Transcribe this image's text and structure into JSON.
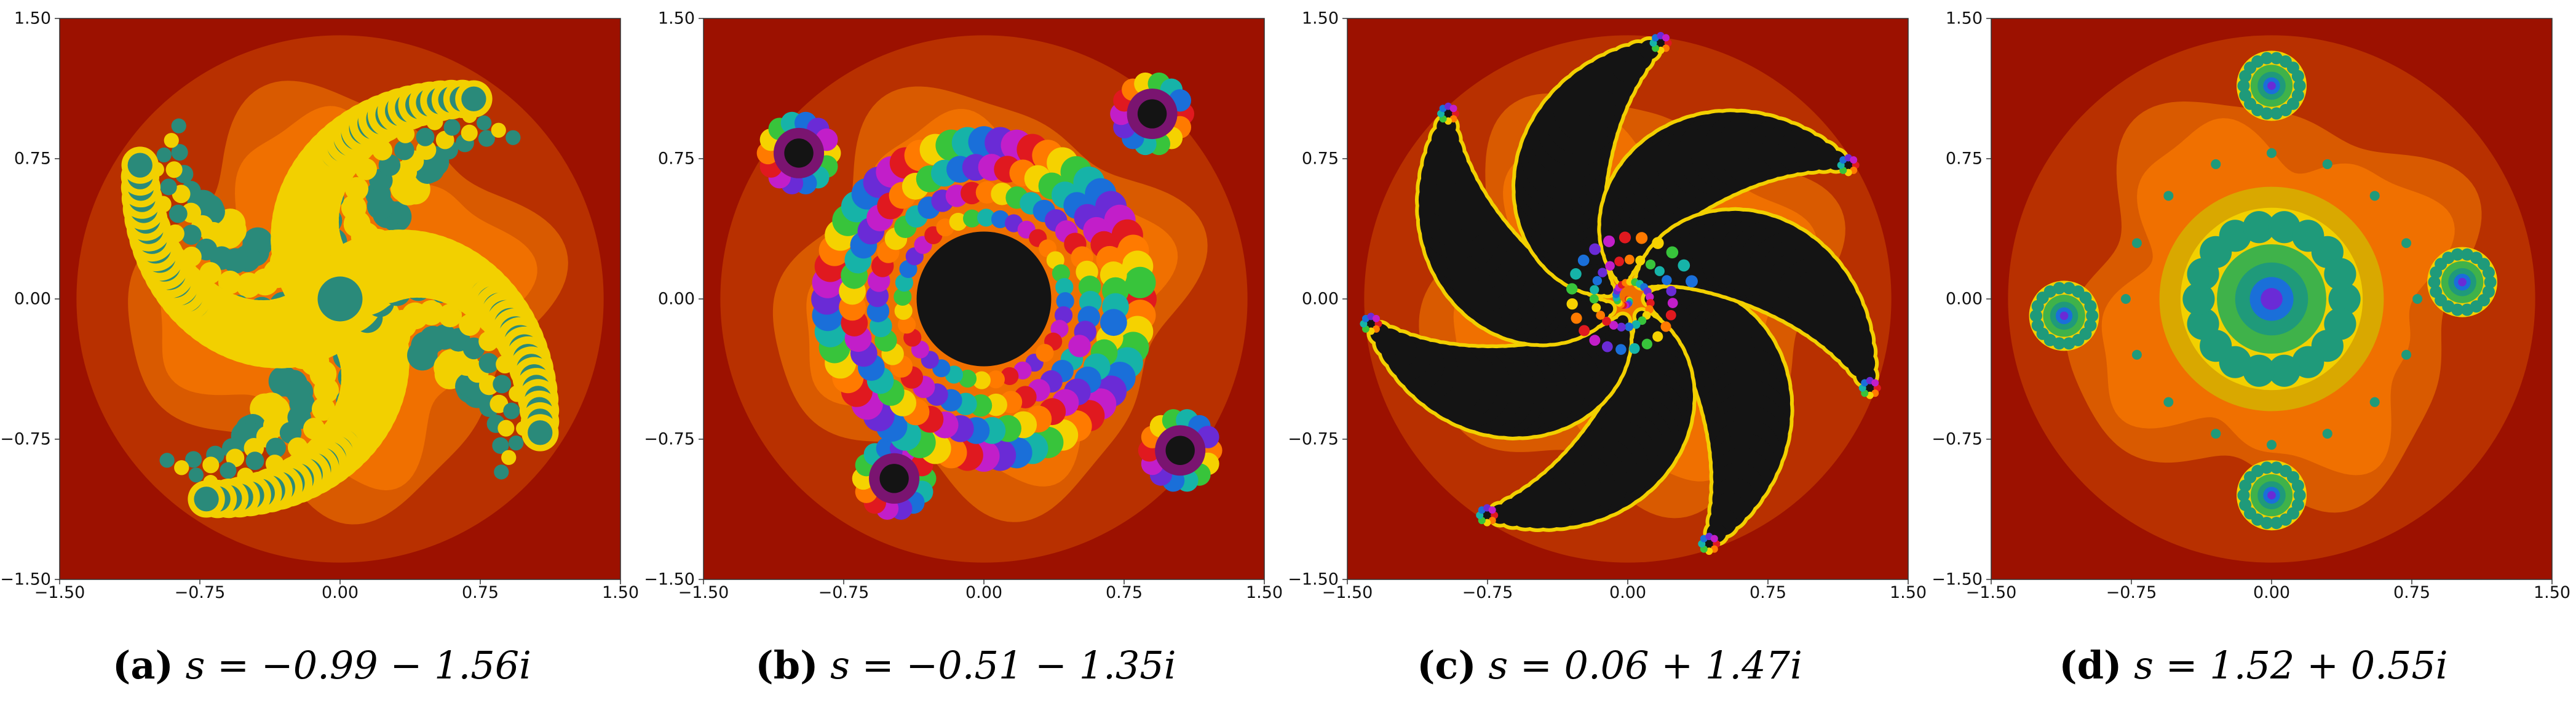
{
  "panels": [
    {
      "id": "a",
      "caption_tag": "(a)",
      "caption_math": "s = −0.99 − 1.56i",
      "x_ticks": [
        "−1.50",
        "−0.75",
        "0.00",
        "0.75",
        "1.50"
      ],
      "y_ticks": [
        "1.50",
        "0.75",
        "0.00",
        "−0.75",
        "−1.50"
      ],
      "fractal_style": "dendritic-spiral",
      "palette": {
        "outer": "#9c1100",
        "mid": "#b83000",
        "inner": "#d95a00",
        "core": "#f07000",
        "set": "#2a8a7a",
        "highlight": "#f2d000"
      }
    },
    {
      "id": "b",
      "caption_tag": "(b)",
      "caption_math": "s = −0.51 − 1.35i",
      "x_ticks": [
        "−1.50",
        "−0.75",
        "0.00",
        "0.75",
        "1.50"
      ],
      "y_ticks": [
        "1.50",
        "0.75",
        "0.00",
        "−0.75",
        "−1.50"
      ],
      "fractal_style": "rainbow-ring",
      "palette": {
        "outer": "#9c1100",
        "mid": "#b83000",
        "inner": "#d95a00",
        "core": "#f07000",
        "set": "#141414",
        "highlight": "#f2d000"
      }
    },
    {
      "id": "c",
      "caption_tag": "(c)",
      "caption_math": "s = 0.06 + 1.47i",
      "x_ticks": [
        "−1.50",
        "−0.75",
        "0.00",
        "0.75",
        "1.50"
      ],
      "y_ticks": [
        "1.50",
        "0.75",
        "0.00",
        "−0.75",
        "−1.50"
      ],
      "fractal_style": "pinwheel",
      "palette": {
        "outer": "#9c1100",
        "mid": "#b83000",
        "inner": "#d95a00",
        "core": "#f07000",
        "set": "#141414",
        "highlight": "#f2d000"
      }
    },
    {
      "id": "d",
      "caption_tag": "(d)",
      "caption_math": "s = 1.52 + 0.55i",
      "x_ticks": [
        "−1.50",
        "−0.75",
        "0.00",
        "0.75",
        "1.50"
      ],
      "y_ticks": [
        "1.50",
        "0.75",
        "0.00",
        "−0.75",
        "−1.50"
      ],
      "fractal_style": "flower-cluster",
      "palette": {
        "outer": "#9c1100",
        "mid": "#b83000",
        "inner": "#d95a00",
        "core": "#f07000",
        "set": "#1f9a7a",
        "highlight": "#f2d000"
      }
    }
  ]
}
